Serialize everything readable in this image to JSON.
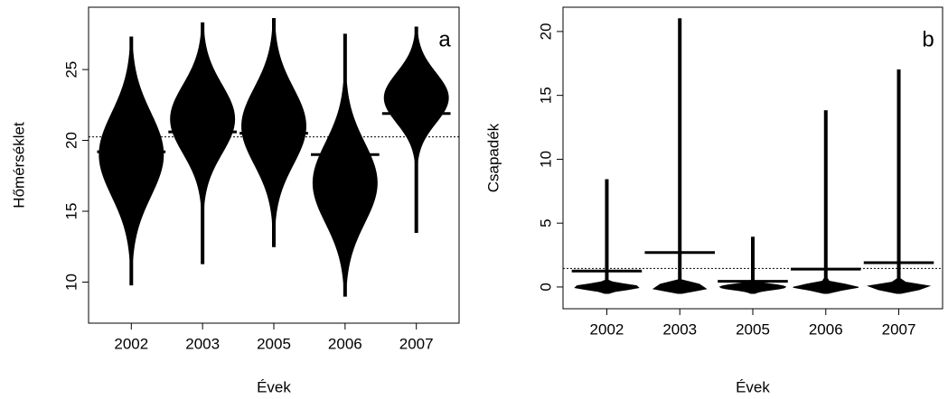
{
  "chart_data": [
    {
      "type": "beanplot",
      "annotation": "a",
      "xlabel": "Évek",
      "ylabel": "Hőmérséklet",
      "categories": [
        "2002",
        "2003",
        "2005",
        "2006",
        "2007"
      ],
      "min": [
        9.8,
        11.3,
        12.5,
        9,
        13.5
      ],
      "max": [
        27.3,
        28.3,
        28.6,
        27.5,
        28
      ],
      "mode": [
        19,
        21.5,
        21,
        17,
        23
      ],
      "means": [
        19.2,
        20.6,
        20.5,
        19,
        21.9
      ],
      "overall_mean": 20.25,
      "color": "#000000",
      "ylim": [
        7.1,
        29.4
      ],
      "yticks": [
        10,
        15,
        20,
        25
      ]
    },
    {
      "type": "beanplot",
      "annotation": "b",
      "xlabel": "Évek",
      "ylabel": "Csapadék",
      "categories": [
        "2002",
        "2003",
        "2005",
        "2006",
        "2007"
      ],
      "min": [
        -0.5,
        -0.5,
        -0.5,
        -0.5,
        -0.5
      ],
      "max": [
        8.4,
        21,
        3.9,
        13.8,
        17
      ],
      "mode": [
        0,
        0,
        0,
        0,
        0
      ],
      "means": [
        1.25,
        2.7,
        0.45,
        1.4,
        1.9
      ],
      "overall_mean": 1.45,
      "color": "#000000",
      "ylim": [
        -1.7,
        21.9
      ],
      "yticks": [
        0,
        5,
        10,
        15,
        20
      ]
    }
  ]
}
